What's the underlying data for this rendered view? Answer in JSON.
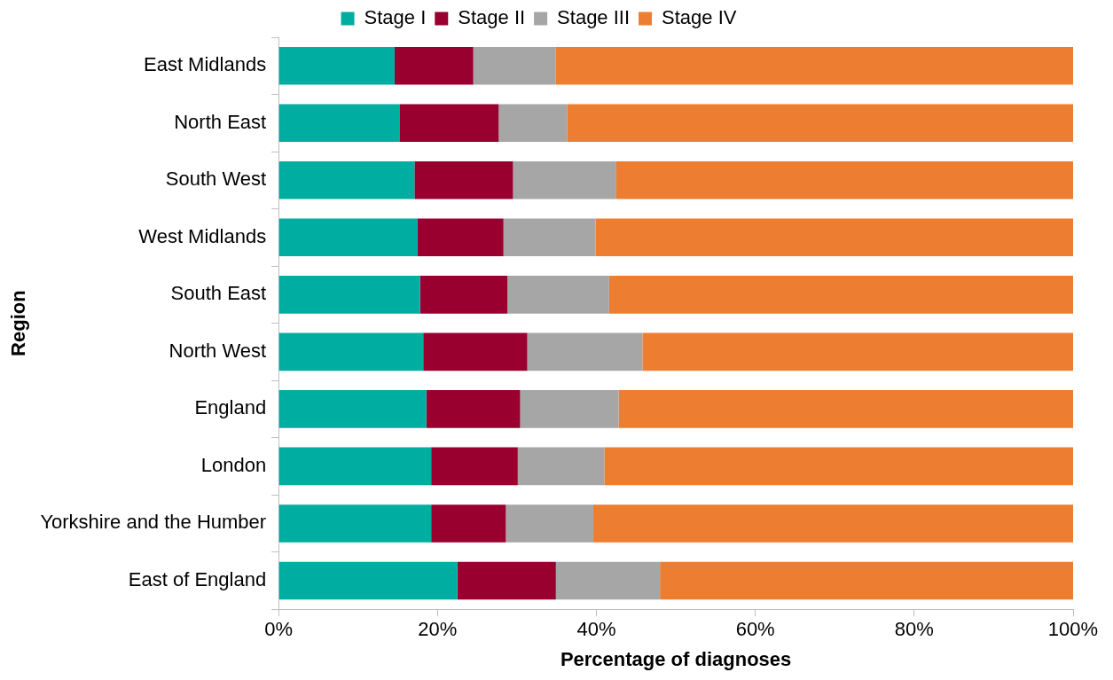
{
  "chart_data": {
    "type": "bar",
    "orientation": "horizontal",
    "stacked": true,
    "xlabel": "Percentage of diagnoses",
    "ylabel": "Region",
    "categories": [
      "East Midlands",
      "North East",
      "South West",
      "West Midlands",
      "South East",
      "North West",
      "England",
      "London",
      "Yorkshire and the Humber",
      "East of England"
    ],
    "series": [
      {
        "name": "Stage I",
        "color": "#00ada1",
        "values": [
          14.6,
          15.2,
          17.1,
          17.5,
          17.8,
          18.2,
          18.6,
          19.2,
          19.2,
          22.5
        ]
      },
      {
        "name": "Stage II",
        "color": "#990030",
        "values": [
          9.9,
          12.5,
          12.4,
          10.8,
          11.0,
          13.1,
          11.8,
          10.9,
          9.4,
          12.4
        ]
      },
      {
        "name": "Stage III",
        "color": "#a6a6a6",
        "values": [
          10.4,
          8.6,
          13.0,
          11.6,
          12.8,
          14.5,
          12.4,
          10.9,
          11.0,
          13.1
        ]
      },
      {
        "name": "Stage IV",
        "color": "#ed7d31",
        "values": [
          65.1,
          63.7,
          57.5,
          60.1,
          58.4,
          54.2,
          57.2,
          59.0,
          60.4,
          52.0
        ]
      }
    ],
    "xlim": [
      0,
      100
    ],
    "xticks": [
      {
        "value": 0,
        "label": "0%"
      },
      {
        "value": 20,
        "label": "20%"
      },
      {
        "value": 40,
        "label": "40%"
      },
      {
        "value": 60,
        "label": "60%"
      },
      {
        "value": 80,
        "label": "80%"
      },
      {
        "value": 100,
        "label": "100%"
      }
    ],
    "grid": false,
    "legend": "top"
  }
}
